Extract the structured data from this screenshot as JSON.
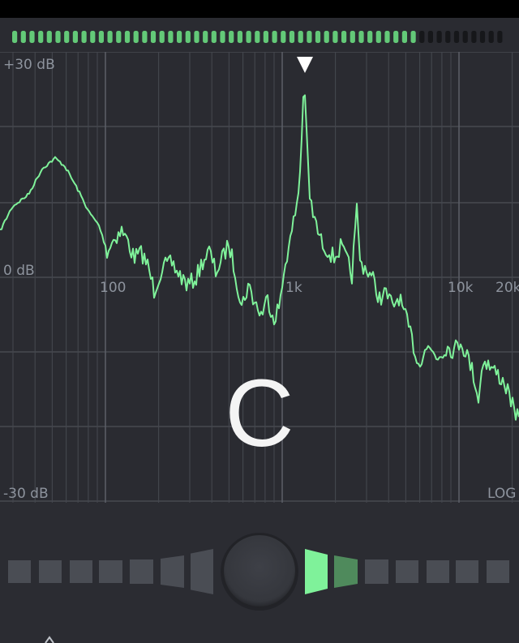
{
  "level_meter": {
    "total_segments": 57,
    "lit_segments": 47,
    "lit_color": "#63c978",
    "unlit_color": "#16171a"
  },
  "spectrum": {
    "db_labels": {
      "top": "+30 dB",
      "middle": "0 dB",
      "bottom": "-30 dB"
    },
    "freq_labels": [
      "100",
      "1k",
      "10k",
      "20k"
    ],
    "scale_label": "LOG",
    "line_color": "#7ff29a",
    "peak_marker_icon": "triangle-down-icon"
  },
  "note": {
    "name": "C"
  },
  "tuner": {
    "segments_left": 7,
    "segments_right": 7,
    "highlighted_right": [
      1,
      2
    ],
    "active_color": "#7ff29a",
    "dim_active_color": "#4f8a5c",
    "inactive_color": "#4a4d54",
    "center_knob_icon": "tuning-knob-icon"
  }
}
